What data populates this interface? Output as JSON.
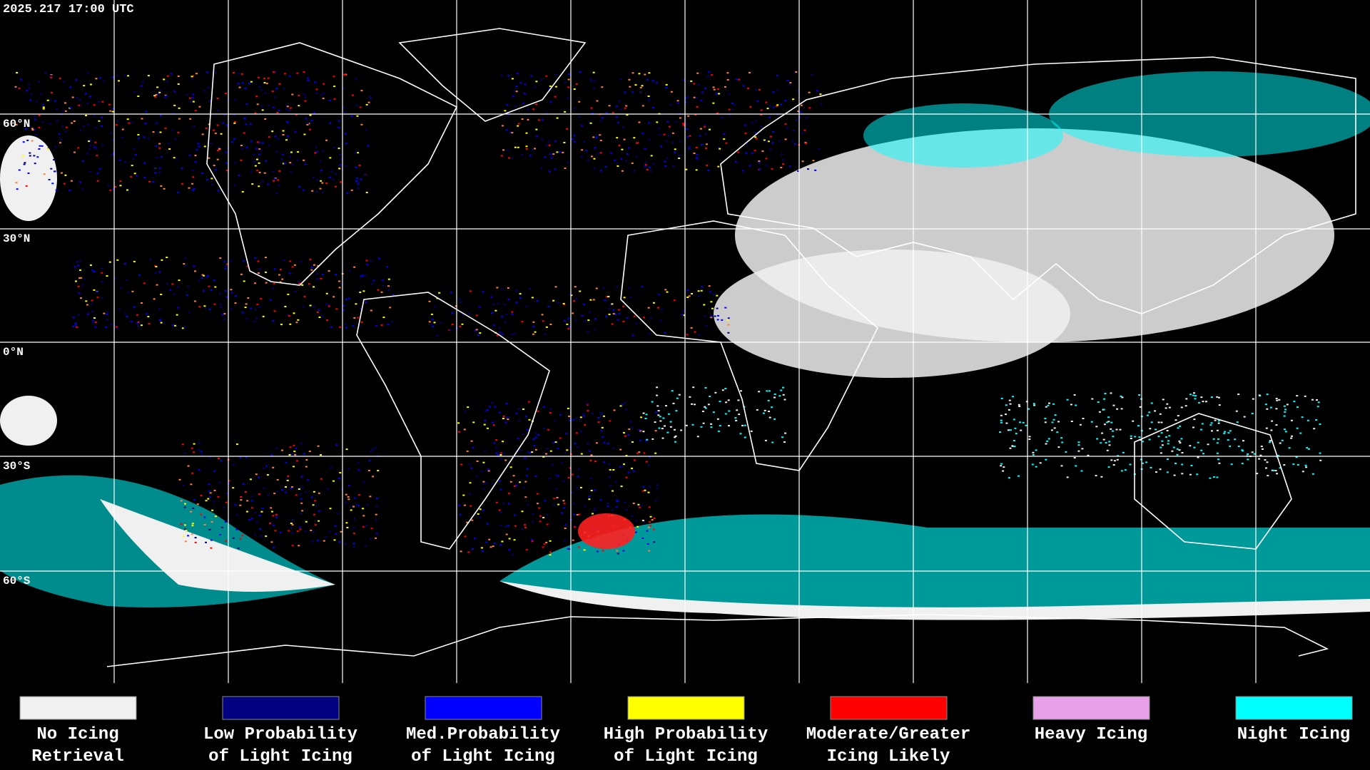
{
  "header": {
    "timestamp": "2025.217 17:00 UTC"
  },
  "latitude_labels": [
    "60°N",
    "30°N",
    "0°N",
    "30°S",
    "60°S"
  ],
  "legend": [
    {
      "label": [
        "No Icing",
        "Retrieval"
      ],
      "color": "#f0f0f0"
    },
    {
      "label": [
        "Low Probability",
        "of Light Icing"
      ],
      "color": "#000080"
    },
    {
      "label": [
        "Med.Probability",
        "of Light Icing"
      ],
      "color": "#0000ff"
    },
    {
      "label": [
        "High Probability",
        "of Light Icing"
      ],
      "color": "#ffff00"
    },
    {
      "label": [
        "Moderate/Greater",
        "Icing Likely"
      ],
      "color": "#ff0000"
    },
    {
      "label": [
        "Heavy Icing"
      ],
      "color": "#e8a0e8"
    },
    {
      "label": [
        "Night Icing"
      ],
      "color": "#00ffff"
    }
  ]
}
